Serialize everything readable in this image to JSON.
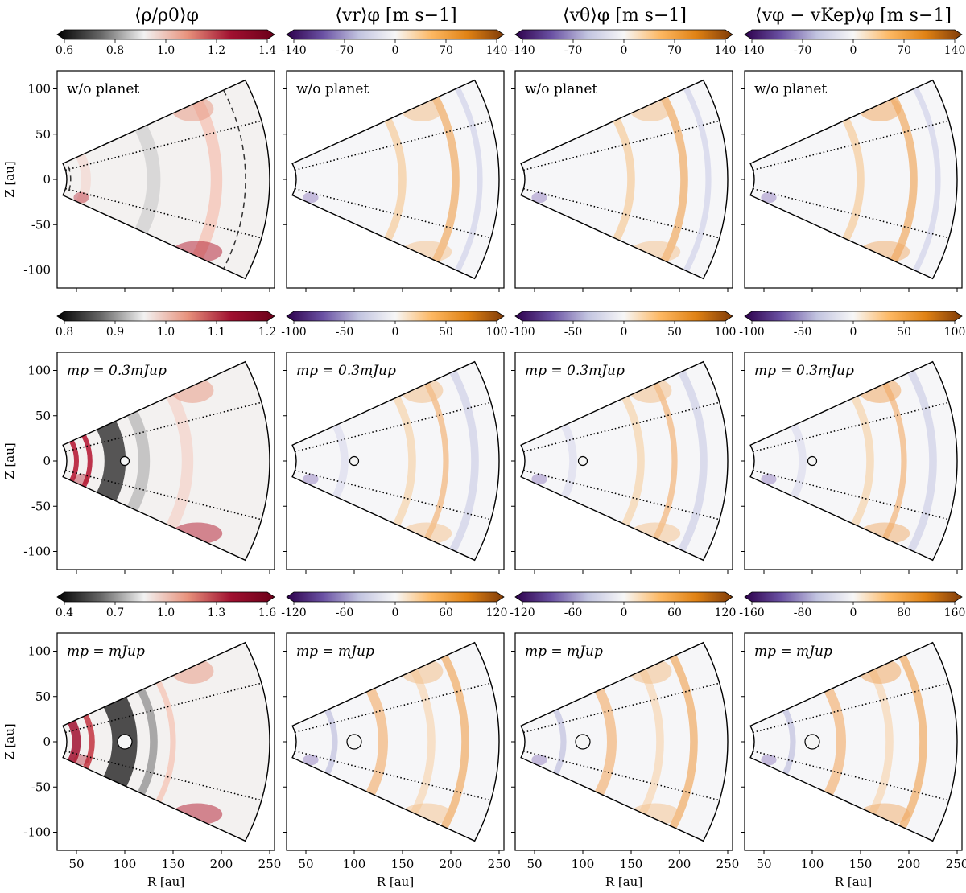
{
  "chart_data": {
    "type": "heatmap",
    "title": "",
    "xlabel": "R [au]",
    "ylabel": "Z [au]",
    "xlim": [
      30,
      255
    ],
    "ylim": [
      -120,
      120
    ],
    "xticks": [
      50,
      100,
      150,
      200,
      250
    ],
    "yticks": [
      100,
      50,
      0,
      -50,
      -100
    ],
    "wedge": {
      "r_inner": 40,
      "r_outer": 250,
      "opening_angle_deg": 26,
      "surface_angle_deg": 15
    },
    "column_titles": [
      "⟨ρ/ρ0⟩φ",
      "⟨vr⟩φ [m s−1]",
      "⟨vθ⟩φ [m s−1]",
      "⟨vφ − vKep⟩φ [m s−1]"
    ],
    "row_labels": [
      "w/o planet",
      "mp = 0.3mJup",
      "mp = mJup"
    ],
    "planet": {
      "r_au": 100,
      "z_au": 0
    },
    "colormaps": {
      "density": [
        "#000000",
        "#666666",
        "#f2f2f2",
        "#e8927c",
        "#a01030",
        "#6b0019"
      ],
      "velocity": [
        "#2d004b",
        "#6a51a3",
        "#c2c4e0",
        "#f7f7f7",
        "#fdb863",
        "#e08214",
        "#7f3b08"
      ]
    },
    "colorbars": [
      [
        {
          "cmap": "density",
          "ticks": [
            "0.6",
            "0.8",
            "1.0",
            "1.2",
            "1.4"
          ]
        },
        {
          "cmap": "velocity",
          "ticks": [
            "-140",
            "-70",
            "0",
            "70",
            "140"
          ]
        },
        {
          "cmap": "velocity",
          "ticks": [
            "-140",
            "-70",
            "0",
            "70",
            "140"
          ]
        },
        {
          "cmap": "velocity",
          "ticks": [
            "-140",
            "-70",
            "0",
            "70",
            "140"
          ]
        }
      ],
      [
        {
          "cmap": "density",
          "ticks": [
            "0.8",
            "0.9",
            "1.0",
            "1.1",
            "1.2"
          ]
        },
        {
          "cmap": "velocity",
          "ticks": [
            "-100",
            "-50",
            "0",
            "50",
            "100"
          ]
        },
        {
          "cmap": "velocity",
          "ticks": [
            "-100",
            "-50",
            "0",
            "50",
            "100"
          ]
        },
        {
          "cmap": "velocity",
          "ticks": [
            "-100",
            "-50",
            "0",
            "50",
            "100"
          ]
        }
      ],
      [
        {
          "cmap": "density",
          "ticks": [
            "0.4",
            "0.7",
            "1.0",
            "1.3",
            "1.6"
          ]
        },
        {
          "cmap": "velocity",
          "ticks": [
            "-120",
            "-60",
            "0",
            "60",
            "120"
          ]
        },
        {
          "cmap": "velocity",
          "ticks": [
            "-120",
            "-60",
            "0",
            "60",
            "120"
          ]
        },
        {
          "cmap": "velocity",
          "ticks": [
            "-160",
            "-80",
            "0",
            "80",
            "160"
          ]
        }
      ]
    ]
  }
}
